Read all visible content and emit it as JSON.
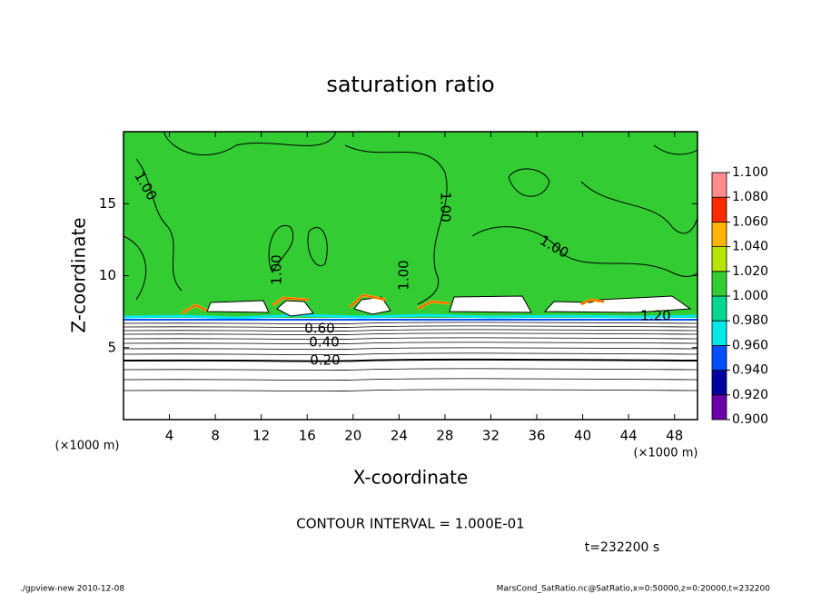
{
  "chart_data": {
    "type": "contour",
    "title": "saturation ratio",
    "xlabel": "X-coordinate",
    "ylabel": "Z-coordinate",
    "xunit": "(×1000 m)",
    "yunit": "(×1000 m)",
    "xlim": [
      0,
      50
    ],
    "ylim": [
      0,
      20
    ],
    "xticks": [
      4,
      8,
      12,
      16,
      20,
      24,
      28,
      32,
      36,
      40,
      44,
      48
    ],
    "yticks": [
      5,
      10,
      15
    ],
    "colorbar": {
      "ticks": [
        {
          "value": 0.9,
          "label": "0.900"
        },
        {
          "value": 0.92,
          "label": "0.920"
        },
        {
          "value": 0.94,
          "label": "0.940"
        },
        {
          "value": 0.96,
          "label": "0.960"
        },
        {
          "value": 0.98,
          "label": "0.980"
        },
        {
          "value": 1.0,
          "label": "1.000"
        },
        {
          "value": 1.02,
          "label": "1.020"
        },
        {
          "value": 1.04,
          "label": "1.040"
        },
        {
          "value": 1.06,
          "label": "1.060"
        },
        {
          "value": 1.08,
          "label": "1.080"
        },
        {
          "value": 1.1,
          "label": "1.100"
        }
      ],
      "colors": [
        "#6a00a8",
        "#0000a0",
        "#0050ff",
        "#00e8e8",
        "#00d890",
        "#33cc33",
        "#b8e600",
        "#ffb400",
        "#ff2a00",
        "#ff8c8c"
      ]
    },
    "contour_labels": [
      "1.00",
      "1.00",
      "1.00",
      "1.00",
      "1.00",
      "1.20",
      "0.60",
      "0.40",
      "0.20"
    ],
    "contour_interval": "CONTOUR INTERVAL = 1.000E-01",
    "time": "t=232200 s",
    "footer_left": "./gpview-new   2010-12-08",
    "footer_right": "MarsCond_SatRatio.nc@SatRatio,x=0:50000,z=0:20000,t=232200"
  }
}
